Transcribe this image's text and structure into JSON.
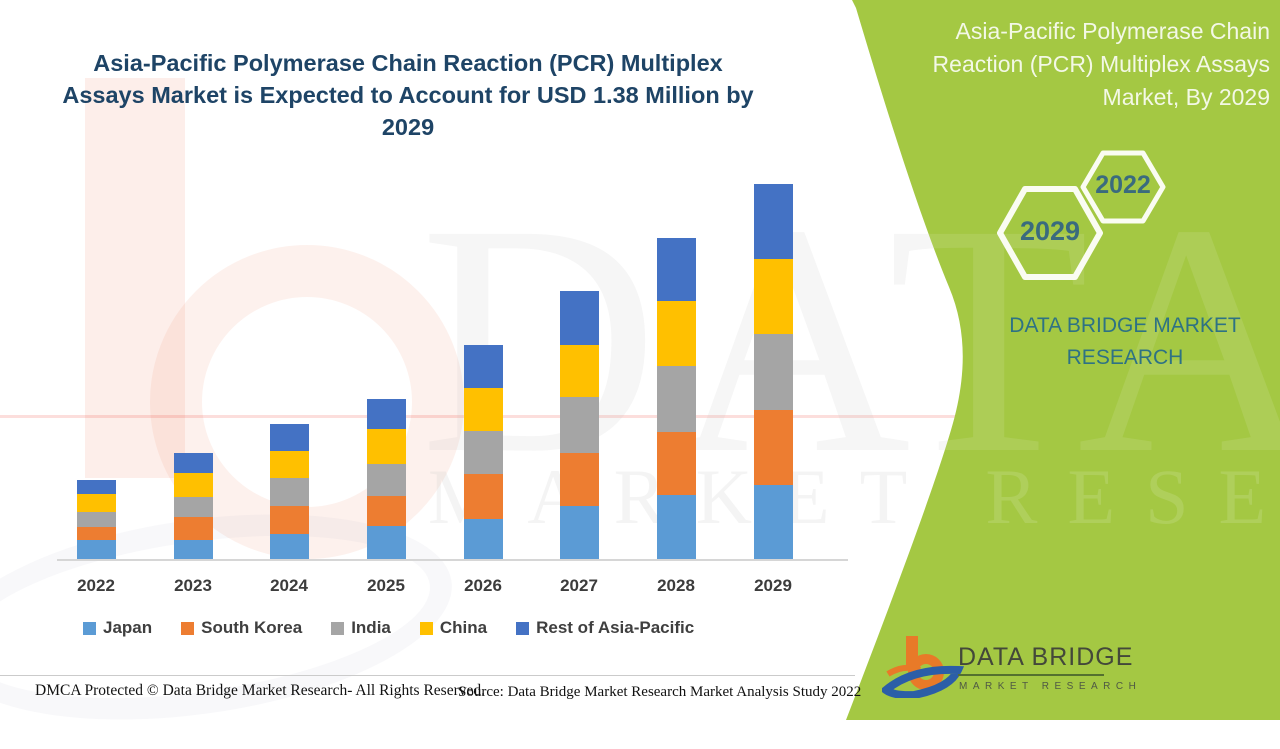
{
  "header": {
    "title": "Asia-Pacific Polymerase Chain Reaction (PCR) Multiplex Assays Market is Expected to Account for USD 1.38 Million by 2029"
  },
  "side_panel": {
    "title": "Asia-Pacific Polymerase Chain Reaction (PCR) Multiplex Assays Market, By 2029",
    "hexagon_small_label": "2022",
    "hexagon_large_label": "2029",
    "brand_name": "DATA BRIDGE MARKET RESEARCH",
    "panel_color": "#A4C843",
    "hexagon_outline_color": "#FAFCF2",
    "accent_text_color": "#2E7284"
  },
  "chart_data": {
    "type": "bar",
    "stacked": true,
    "title": "Asia-Pacific Polymerase Chain Reaction (PCR) Multiplex Assays Market, By 2029",
    "unit": "USD Million",
    "categories": [
      "2022",
      "2023",
      "2024",
      "2025",
      "2026",
      "2027",
      "2028",
      "2029"
    ],
    "series": [
      {
        "name": "Japan",
        "color": "#5B9BD5",
        "values": [
          0.07,
          0.07,
          0.092,
          0.121,
          0.147,
          0.195,
          0.236,
          0.272
        ]
      },
      {
        "name": "South Korea",
        "color": "#ED7D31",
        "values": [
          0.048,
          0.085,
          0.103,
          0.11,
          0.166,
          0.195,
          0.232,
          0.276
        ]
      },
      {
        "name": "India",
        "color": "#A5A5A5",
        "values": [
          0.055,
          0.074,
          0.103,
          0.118,
          0.158,
          0.206,
          0.243,
          0.28
        ]
      },
      {
        "name": "China",
        "color": "#FFC000",
        "values": [
          0.066,
          0.088,
          0.099,
          0.129,
          0.158,
          0.191,
          0.236,
          0.276
        ]
      },
      {
        "name": "Rest of Asia-Pacific",
        "color": "#4472C4",
        "values": [
          0.052,
          0.074,
          0.099,
          0.11,
          0.158,
          0.199,
          0.232,
          0.276
        ]
      }
    ],
    "totals": [
      0.29,
      0.39,
      0.5,
      0.59,
      0.79,
      0.99,
      1.18,
      1.38
    ],
    "final_value_label": "USD 1.38 Million by 2029",
    "xlabel": "",
    "ylabel": "",
    "grid": false,
    "y_axis_shown": false,
    "legend_position": "bottom"
  },
  "watermark": {
    "row1": "DATA BRIDGE",
    "row2": "MARKET RESEARCH"
  },
  "footer": {
    "dmca": "DMCA Protected © Data Bridge Market Research- All Rights Reserved.",
    "source": "Source: Data Bridge Market Research Market Analysis Study 2022"
  },
  "logo": {
    "name": "DATA BRIDGE",
    "tagline": "MARKET RESEARCH"
  }
}
